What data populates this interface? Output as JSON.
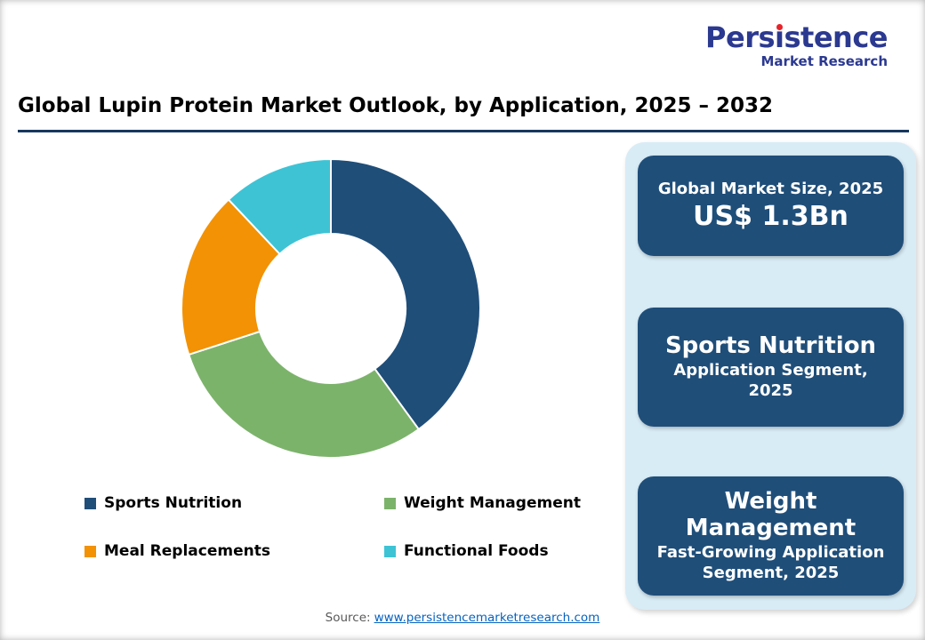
{
  "logo": {
    "brand": "Persistence",
    "subtitle": "Market Research"
  },
  "title": "Global Lupin Protein Market Outlook, by Application, 2025 – 2032",
  "chart_data": {
    "type": "pie",
    "donut": true,
    "inner_radius_ratio": 0.5,
    "start_angle": 0,
    "direction": "clockwise",
    "title": "Global Lupin Protein Market Outlook, by Application, 2025 – 2032",
    "categories": [
      "Sports Nutrition",
      "Weight Management",
      "Meal Replacements",
      "Functional Foods"
    ],
    "values": [
      40,
      30,
      18,
      12
    ],
    "colors": [
      "#1F4E79",
      "#7CB36B",
      "#F29204",
      "#3EC3D5"
    ],
    "legend_position": "bottom"
  },
  "sidebar": {
    "background": "#D8ECF6",
    "card_color": "#1F4E79",
    "cards": [
      {
        "line1": "Global Market Size, 2025",
        "line2": "US$ 1.3Bn"
      },
      {
        "line1": "Sports Nutrition",
        "line2": "Application Segment, 2025"
      },
      {
        "line1": "Weight Management",
        "line2": "Fast-Growing Application Segment, 2025"
      }
    ]
  },
  "footer": {
    "source_label": "Source:",
    "source_link": "www.persistencemarketresearch.com"
  }
}
